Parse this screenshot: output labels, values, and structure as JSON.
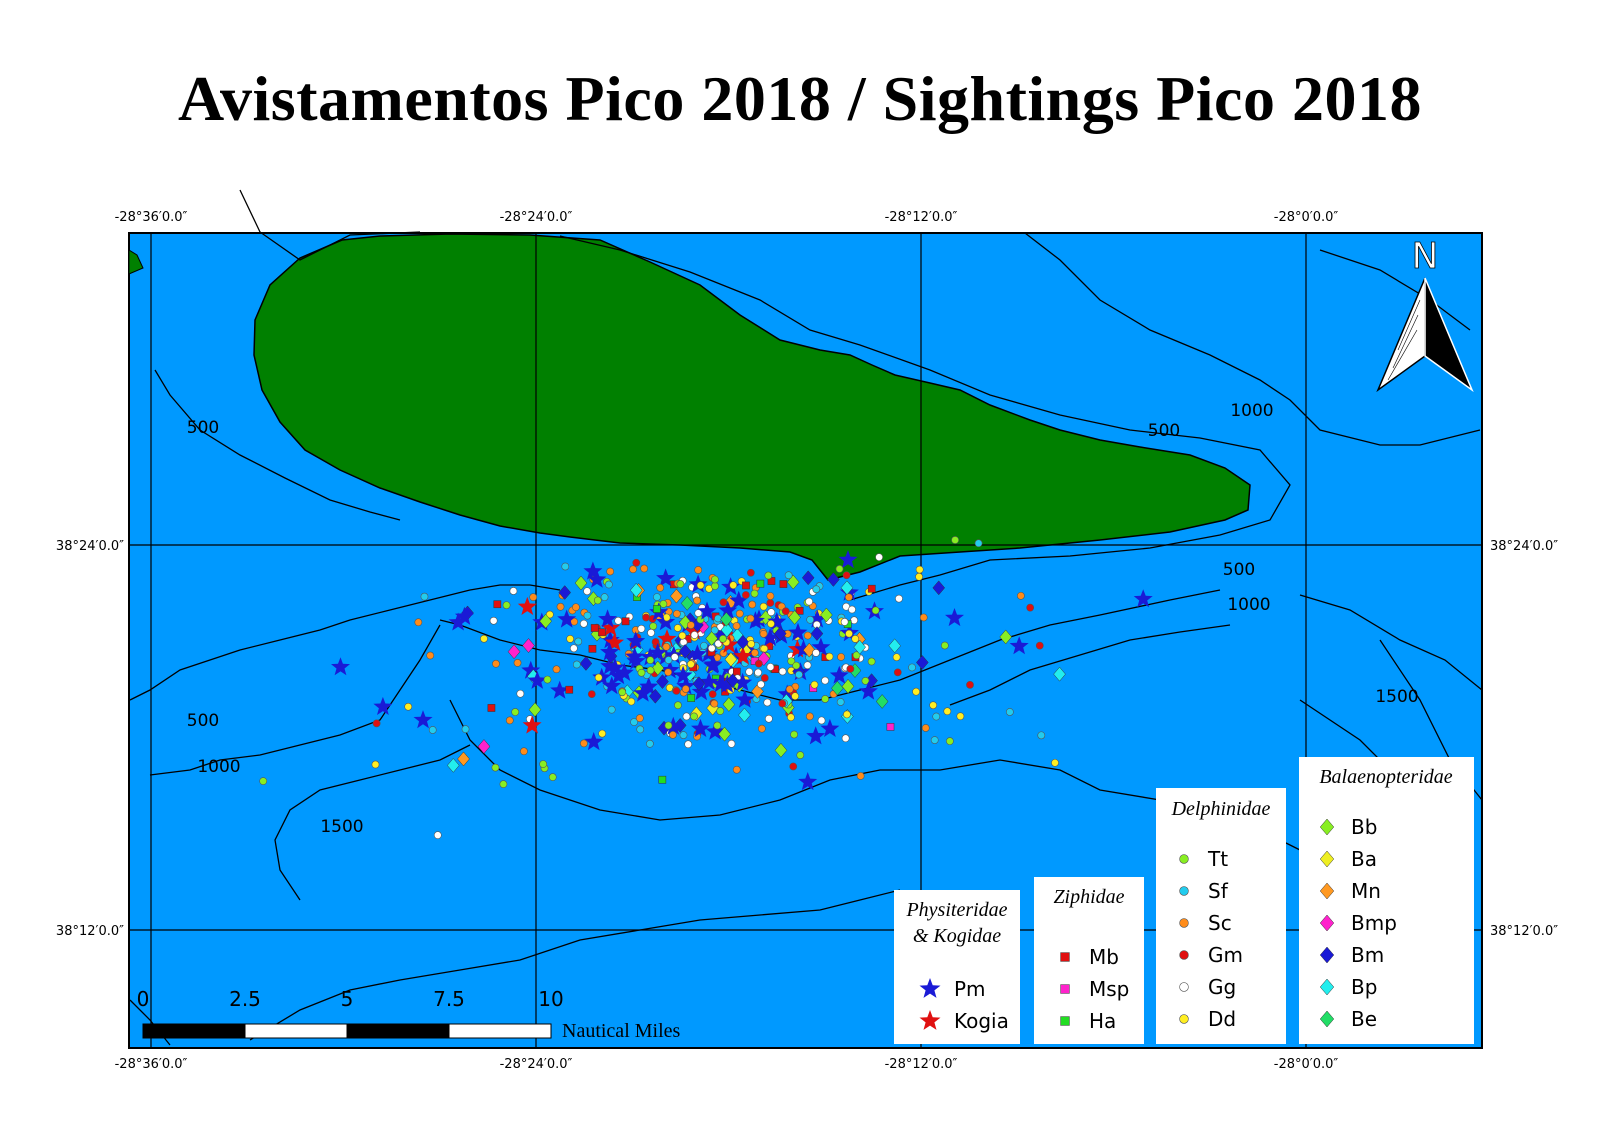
{
  "title": "Avistamentos Pico 2018 / Sightings Pico 2018",
  "colors": {
    "sea": "#0099ff",
    "land": "#008000",
    "contour": "#000000"
  },
  "coordinates": {
    "longitude_labels": [
      "-28°36′0.0″",
      "-28°24′0.0″",
      "-28°12′0.0″",
      "-28°0′0.0″"
    ],
    "latitude_labels": [
      "38°24′0.0″",
      "38°12′0.0″"
    ]
  },
  "north_arrow": {
    "label": "N"
  },
  "depth_labels": [
    "500",
    "500",
    "1000",
    "500",
    "1000",
    "500",
    "1000",
    "1500",
    "1500"
  ],
  "scale_bar": {
    "ticks": [
      "0",
      "2.5",
      "5",
      "7.5",
      "10"
    ],
    "unit": "Nautical Miles"
  },
  "legend": {
    "physiteridae": {
      "title_line1": "Physiteridae",
      "title_line2": "& Kogidae",
      "items": [
        {
          "label": "Pm",
          "color": "#1a1ad6",
          "shape": "star"
        },
        {
          "label": "Kogia",
          "color": "#e01010",
          "shape": "star"
        }
      ]
    },
    "ziphidae": {
      "title": "Ziphidae",
      "items": [
        {
          "label": "Mb",
          "color": "#e01010",
          "shape": "square"
        },
        {
          "label": "Msp",
          "color": "#ff22cc",
          "shape": "square"
        },
        {
          "label": "Ha",
          "color": "#22dd22",
          "shape": "square"
        }
      ]
    },
    "delphinidae": {
      "title": "Delphinidae",
      "items": [
        {
          "label": "Tt",
          "color": "#88ee22",
          "shape": "circle"
        },
        {
          "label": "Sf",
          "color": "#22ccee",
          "shape": "circle"
        },
        {
          "label": "Sc",
          "color": "#ff8c1a",
          "shape": "circle"
        },
        {
          "label": "Gm",
          "color": "#e01010",
          "shape": "circle"
        },
        {
          "label": "Gg",
          "color": "#ffffff",
          "shape": "circle"
        },
        {
          "label": "Dd",
          "color": "#ffee22",
          "shape": "circle"
        }
      ]
    },
    "balaenopteridae": {
      "title": "Balaenopteridae",
      "items": [
        {
          "label": "Bb",
          "color": "#88ee22",
          "shape": "diamond"
        },
        {
          "label": "Ba",
          "color": "#eeee22",
          "shape": "diamond"
        },
        {
          "label": "Mn",
          "color": "#ff9922",
          "shape": "diamond"
        },
        {
          "label": "Bmp",
          "color": "#ff22cc",
          "shape": "diamond"
        },
        {
          "label": "Bm",
          "color": "#1a1ad6",
          "shape": "diamond"
        },
        {
          "label": "Bp",
          "color": "#22eeee",
          "shape": "diamond"
        },
        {
          "label": "Be",
          "color": "#22dd66",
          "shape": "diamond"
        }
      ]
    }
  }
}
